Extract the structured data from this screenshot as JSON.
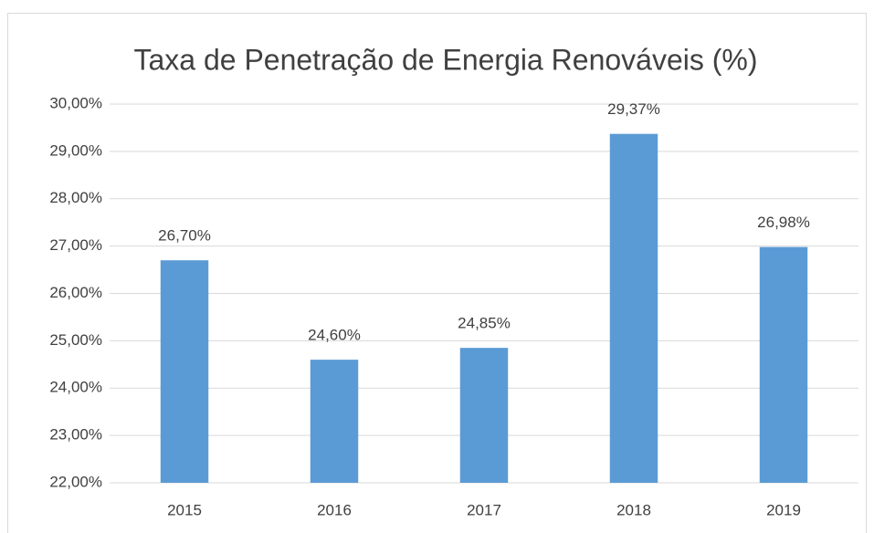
{
  "chart_data": {
    "type": "bar",
    "title": "Taxa de Penetração de Energia Renováveis (%)",
    "categories": [
      "2015",
      "2016",
      "2017",
      "2018",
      "2019"
    ],
    "values": [
      26.7,
      24.6,
      24.85,
      29.37,
      26.98
    ],
    "value_labels": [
      "26,70%",
      "24,60%",
      "24,85%",
      "29,37%",
      "26,98%"
    ],
    "color": "#5b9bd5",
    "ylim": [
      22,
      30
    ],
    "yticks": [
      {
        "value": 22,
        "label": "22,00%"
      },
      {
        "value": 23,
        "label": "23,00%"
      },
      {
        "value": 24,
        "label": "24,00%"
      },
      {
        "value": 25,
        "label": "25,00%"
      },
      {
        "value": 26,
        "label": "26,00%"
      },
      {
        "value": 27,
        "label": "27,00%"
      },
      {
        "value": 28,
        "label": "28,00%"
      },
      {
        "value": 29,
        "label": "29,00%"
      },
      {
        "value": 30,
        "label": "30,00%"
      }
    ],
    "grid": true
  }
}
